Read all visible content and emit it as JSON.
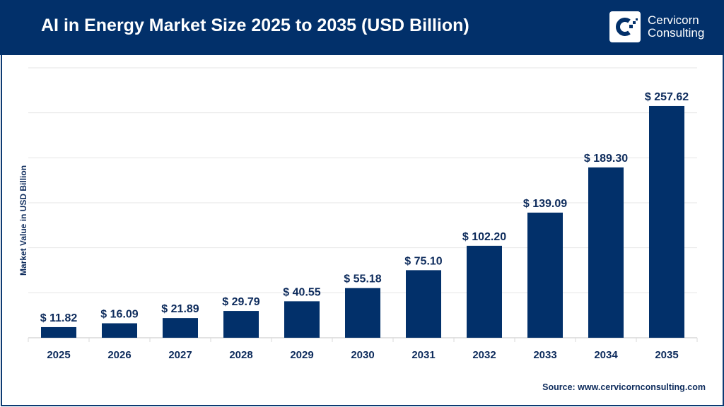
{
  "header": {
    "title": "AI in Energy Market Size 2025 to 2035 (USD Billion)"
  },
  "logo": {
    "line1": "Cervicorn",
    "line2": "Consulting"
  },
  "source": "Source: www.cervicornconsulting.com",
  "colors": {
    "bar": "#02306a",
    "header": "#02306a",
    "label": "#0d2b5c",
    "grid": "#e6e6e6"
  },
  "chart_data": {
    "type": "bar",
    "title": "AI in Energy Market Size 2025 to 2035 (USD Billion)",
    "xlabel": "",
    "ylabel": "Market Value in USD Billion",
    "categories": [
      "2025",
      "2026",
      "2027",
      "2028",
      "2029",
      "2030",
      "2031",
      "2032",
      "2033",
      "2034",
      "2035"
    ],
    "values": [
      11.82,
      16.09,
      21.89,
      29.79,
      40.55,
      55.18,
      75.1,
      102.2,
      139.09,
      189.3,
      257.62
    ],
    "data_labels": [
      "$ 11.82",
      "$ 16.09",
      "$ 21.89",
      "$ 29.79",
      "$ 40.55",
      "$ 55.18",
      "$ 75.10",
      "$ 102.20",
      "$ 139.09",
      "$ 189.30",
      "$ 257.62"
    ],
    "ylim": [
      0,
      300
    ],
    "grid": true,
    "y_tick_labels_shown": false
  }
}
